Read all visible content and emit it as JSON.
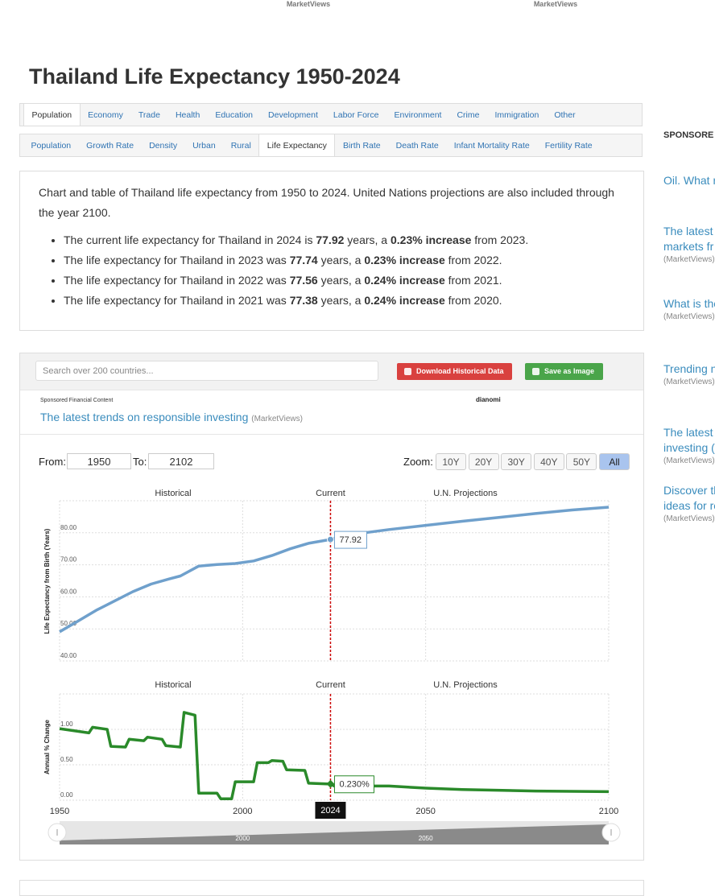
{
  "header": {
    "ad_sources": [
      "MarketViews",
      "MarketViews"
    ],
    "title": "Thailand Life Expectancy 1950-2024"
  },
  "nav": {
    "tabs": [
      "Population",
      "Economy",
      "Trade",
      "Health",
      "Education",
      "Development",
      "Labor Force",
      "Environment",
      "Crime",
      "Immigration",
      "Other"
    ],
    "active_index": 0
  },
  "subnav": {
    "tabs": [
      "Population",
      "Growth Rate",
      "Density",
      "Urban",
      "Rural",
      "Life Expectancy",
      "Birth Rate",
      "Death Rate",
      "Infant Mortality Rate",
      "Fertility Rate"
    ],
    "active_index": 5
  },
  "summary": {
    "intro": "Chart and table of Thailand life expectancy from 1950 to 2024. United Nations projections are also included through the year 2100.",
    "bullets": [
      [
        "The current life expectancy for Thailand in 2024 is ",
        "77.92",
        " years, a ",
        "0.23% increase",
        " from 2023."
      ],
      [
        "The life expectancy for Thailand in 2023 was ",
        "77.74",
        " years, a ",
        "0.23% increase",
        " from 2022."
      ],
      [
        "The life expectancy for Thailand in 2022 was ",
        "77.56",
        " years, a ",
        "0.24% increase",
        " from 2021."
      ],
      [
        "The life expectancy for Thailand in 2021 was ",
        "77.38",
        " years, a ",
        "0.24% increase",
        " from 2020."
      ]
    ]
  },
  "toolbar": {
    "search_placeholder": "Search over 200 countries...",
    "download": "Download Historical Data",
    "save": "Save as Image"
  },
  "sponsored": {
    "label": "Sponsored Financial Content",
    "brand": "dianomi",
    "link": "The latest trends on responsible investing",
    "source": "(MarketViews)"
  },
  "controls": {
    "from_label": "From:",
    "from": "1950",
    "to_label": "To:",
    "to": "2102",
    "zoom_label": "Zoom:",
    "zoom": [
      "10Y",
      "20Y",
      "30Y",
      "40Y",
      "50Y",
      "All"
    ],
    "zoom_active_index": 5
  },
  "chart_data": [
    {
      "type": "line",
      "band_labels": [
        "Historical",
        "Current",
        "U.N. Projections"
      ],
      "y_label": "Life Expectancy from Birth (Years)",
      "x": [
        1950,
        1955,
        1960,
        1965,
        1970,
        1975,
        1980,
        1983,
        1988,
        1993,
        1998,
        2003,
        2008,
        2013,
        2018,
        2024,
        2030,
        2040,
        2050,
        2060,
        2070,
        2080,
        2090,
        2100
      ],
      "values": [
        49.1,
        52.4,
        55.8,
        58.7,
        61.6,
        64.0,
        65.6,
        66.5,
        69.6,
        70.1,
        70.4,
        71.2,
        72.9,
        75.0,
        76.7,
        77.92,
        79.5,
        81.0,
        82.3,
        83.6,
        84.8,
        86.0,
        87.1,
        88.0
      ],
      "color": "#6fa0cc",
      "xlim": [
        1950,
        2100
      ],
      "ylim": [
        40,
        90
      ],
      "yticks": [
        {
          "value": 40,
          "label": "40.00"
        },
        {
          "value": 50,
          "label": "50.00"
        },
        {
          "value": 60,
          "label": "60.00"
        },
        {
          "value": 70,
          "label": "70.00"
        },
        {
          "value": 80,
          "label": "80.00"
        }
      ],
      "grid": true
    },
    {
      "type": "line",
      "band_labels": [
        "Historical",
        "Current",
        "U.N. Projections"
      ],
      "y_label": "Annual % Change",
      "x": [
        1950,
        1958,
        1959,
        1963,
        1964,
        1968,
        1969,
        1973,
        1974,
        1978,
        1979,
        1983,
        1984,
        1987,
        1988,
        1993,
        1994,
        1997,
        1998,
        2003,
        2004,
        2007,
        2008,
        2011,
        2012,
        2017,
        2018,
        2023,
        2024,
        2025,
        2040,
        2050,
        2060,
        2080,
        2100
      ],
      "values": [
        1.01,
        0.95,
        1.03,
        1.0,
        0.76,
        0.75,
        0.86,
        0.84,
        0.89,
        0.86,
        0.77,
        0.75,
        1.24,
        1.2,
        0.1,
        0.1,
        0.02,
        0.02,
        0.26,
        0.26,
        0.53,
        0.53,
        0.56,
        0.55,
        0.43,
        0.42,
        0.24,
        0.23,
        0.23,
        0.2,
        0.2,
        0.17,
        0.15,
        0.13,
        0.12
      ],
      "value_labels": [
        null,
        null,
        null,
        null,
        null,
        null,
        null,
        null,
        null,
        null,
        null,
        null,
        null,
        null,
        null,
        null,
        null,
        null,
        null,
        null,
        null,
        null,
        null,
        null,
        null,
        null,
        null,
        null,
        "0.230%",
        null,
        null,
        null,
        null,
        null,
        null
      ],
      "color": "#2a8a2a",
      "xlim": [
        1950,
        2100
      ],
      "ylim": [
        0,
        1.5
      ],
      "yticks": [
        {
          "value": 0,
          "label": "0.00"
        },
        {
          "value": 0.5,
          "label": "0.50"
        },
        {
          "value": 1,
          "label": "1.00"
        }
      ],
      "xticks": [
        1950,
        2000,
        2050,
        2100
      ],
      "current": 2024,
      "navigator_xticks": [
        2000,
        2050
      ],
      "grid": true
    }
  ],
  "sidebar": {
    "heading": "SPONSORE",
    "items": [
      {
        "lines": [
          "Oil. What r"
        ]
      },
      {
        "lines": [
          "The latest",
          "markets fr"
        ],
        "source": "(MarketViews)"
      },
      {
        "lines": [
          "What is the"
        ],
        "source": "(MarketViews)"
      },
      {
        "lines": [
          "Trending n"
        ],
        "source": "(MarketViews)"
      },
      {
        "lines": [
          "The latest",
          "investing ("
        ],
        "source": "(MarketViews)"
      },
      {
        "lines": [
          "Discover th",
          "ideas for re"
        ],
        "source": "(MarketViews)"
      }
    ]
  }
}
